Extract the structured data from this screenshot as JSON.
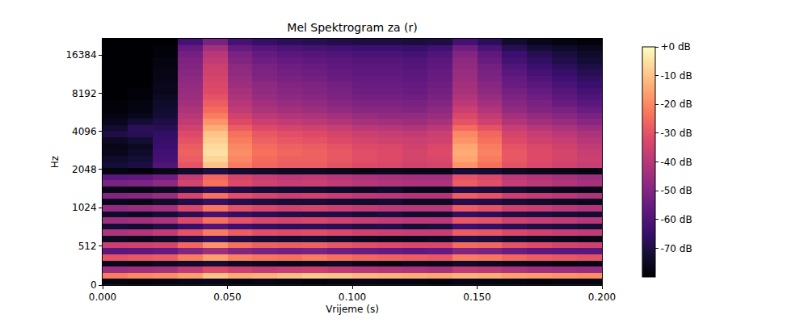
{
  "chart_data": {
    "type": "heatmap",
    "title": "Mel Spektrogram za (r)",
    "x_label": "Vrijeme (s)",
    "y_label": "Hz",
    "x": [
      0.005,
      0.015,
      0.025,
      0.035,
      0.045,
      0.055,
      0.065,
      0.075,
      0.085,
      0.095,
      0.105,
      0.115,
      0.125,
      0.135,
      0.145,
      0.155,
      0.165,
      0.175,
      0.185,
      0.195
    ],
    "y": [
      40,
      121,
      202,
      283,
      364,
      444,
      525,
      606,
      687,
      768,
      848,
      929,
      1014,
      1134,
      1268,
      1419,
      1587,
      1775,
      1985,
      2221,
      2483,
      2778,
      3107,
      3475,
      3887,
      4347,
      4863,
      5440,
      6084,
      6806,
      7612,
      8515,
      9525,
      10654,
      11917,
      13330,
      14911,
      16679,
      18656,
      20868
    ],
    "z": [
      [
        -78,
        -79,
        -78,
        -77,
        -76,
        -78,
        -77,
        -78,
        -79,
        -78,
        -77,
        -78,
        -78,
        -79,
        -77,
        -78,
        -78,
        -79,
        -78,
        -78
      ],
      [
        -22,
        -20,
        -19,
        -16,
        -10,
        -14,
        -13,
        -11,
        -9,
        -10,
        -12,
        -13,
        -14,
        -15,
        -13,
        -14,
        -16,
        -17,
        -18,
        -19
      ],
      [
        -45,
        -44,
        -43,
        -38,
        -32,
        -36,
        -38,
        -37,
        -36,
        -38,
        -40,
        -41,
        -42,
        -43,
        -38,
        -39,
        -42,
        -44,
        -45,
        -46
      ],
      [
        -76,
        -77,
        -75,
        -74,
        -72,
        -75,
        -76,
        -77,
        -76,
        -75,
        -77,
        -78,
        -76,
        -77,
        -74,
        -75,
        -76,
        -77,
        -78,
        -77
      ],
      [
        -30,
        -29,
        -28,
        -22,
        -16,
        -21,
        -23,
        -24,
        -22,
        -24,
        -26,
        -27,
        -28,
        -29,
        -22,
        -23,
        -26,
        -28,
        -29,
        -30
      ],
      [
        -58,
        -57,
        -56,
        -50,
        -45,
        -50,
        -52,
        -53,
        -52,
        -54,
        -55,
        -56,
        -57,
        -56,
        -50,
        -52,
        -55,
        -57,
        -58,
        -58
      ],
      [
        -36,
        -35,
        -34,
        -26,
        -18,
        -24,
        -27,
        -28,
        -27,
        -29,
        -31,
        -32,
        -33,
        -33,
        -25,
        -26,
        -30,
        -32,
        -34,
        -35
      ],
      [
        -75,
        -76,
        -74,
        -70,
        -66,
        -70,
        -72,
        -73,
        -72,
        -74,
        -75,
        -76,
        -76,
        -75,
        -70,
        -71,
        -74,
        -75,
        -76,
        -77
      ],
      [
        -42,
        -41,
        -38,
        -30,
        -22,
        -28,
        -31,
        -32,
        -31,
        -33,
        -35,
        -36,
        -37,
        -37,
        -28,
        -29,
        -33,
        -35,
        -37,
        -38
      ],
      [
        -72,
        -73,
        -70,
        -65,
        -60,
        -64,
        -66,
        -67,
        -67,
        -68,
        -70,
        -69,
        -72,
        -71,
        -64,
        -66,
        -68,
        -70,
        -71,
        -72
      ],
      [
        -45,
        -44,
        -42,
        -32,
        -24,
        -30,
        -33,
        -34,
        -33,
        -35,
        -37,
        -38,
        -39,
        -39,
        -29,
        -30,
        -35,
        -37,
        -38,
        -40
      ],
      [
        -74,
        -75,
        -72,
        -68,
        -62,
        -66,
        -68,
        -69,
        -70,
        -70,
        -72,
        -71,
        -73,
        -73,
        -66,
        -67,
        -70,
        -71,
        -72,
        -73
      ],
      [
        -47,
        -46,
        -44,
        -33,
        -23,
        -30,
        -33,
        -35,
        -34,
        -36,
        -38,
        -39,
        -40,
        -40,
        -28,
        -30,
        -35,
        -37,
        -39,
        -41
      ],
      [
        -76,
        -77,
        -74,
        -70,
        -66,
        -69,
        -71,
        -72,
        -72,
        -73,
        -74,
        -73,
        -75,
        -75,
        -69,
        -70,
        -72,
        -74,
        -75,
        -76
      ],
      [
        -50,
        -49,
        -46,
        -34,
        -24,
        -31,
        -34,
        -36,
        -35,
        -37,
        -39,
        -40,
        -41,
        -41,
        -28,
        -30,
        -36,
        -38,
        -40,
        -42
      ],
      [
        -77,
        -78,
        -75,
        -71,
        -67,
        -70,
        -72,
        -73,
        -73,
        -74,
        -75,
        -74,
        -76,
        -76,
        -70,
        -71,
        -73,
        -75,
        -76,
        -77
      ],
      [
        -52,
        -51,
        -48,
        -34,
        -24,
        -32,
        -35,
        -37,
        -36,
        -38,
        -40,
        -41,
        -42,
        -42,
        -28,
        -31,
        -37,
        -39,
        -41,
        -43
      ],
      [
        -58,
        -57,
        -54,
        -38,
        -26,
        -34,
        -37,
        -39,
        -38,
        -40,
        -42,
        -43,
        -44,
        -44,
        -30,
        -33,
        -39,
        -41,
        -43,
        -45
      ],
      [
        -78,
        -79,
        -77,
        -74,
        -70,
        -73,
        -74,
        -75,
        -75,
        -76,
        -77,
        -76,
        -77,
        -77,
        -72,
        -73,
        -75,
        -76,
        -77,
        -78
      ],
      [
        -72,
        -70,
        -60,
        -30,
        -10,
        -22,
        -26,
        -28,
        -28,
        -30,
        -32,
        -33,
        -35,
        -34,
        -18,
        -24,
        -30,
        -33,
        -35,
        -37
      ],
      [
        -74,
        -72,
        -62,
        -28,
        -7,
        -20,
        -25,
        -27,
        -27,
        -29,
        -31,
        -32,
        -34,
        -33,
        -15,
        -22,
        -29,
        -32,
        -34,
        -36
      ],
      [
        -76,
        -74,
        -63,
        -27,
        -5,
        -19,
        -24,
        -26,
        -27,
        -29,
        -31,
        -32,
        -34,
        -32,
        -14,
        -21,
        -29,
        -32,
        -34,
        -37
      ],
      [
        -77,
        -75,
        -64,
        -28,
        -6,
        -20,
        -25,
        -27,
        -28,
        -30,
        -32,
        -33,
        -35,
        -33,
        -15,
        -22,
        -30,
        -33,
        -35,
        -38
      ],
      [
        -75,
        -72,
        -65,
        -30,
        -8,
        -22,
        -27,
        -29,
        -30,
        -32,
        -34,
        -35,
        -36,
        -35,
        -18,
        -24,
        -32,
        -35,
        -37,
        -40
      ],
      [
        -70,
        -68,
        -66,
        -32,
        -10,
        -24,
        -29,
        -31,
        -32,
        -34,
        -36,
        -37,
        -38,
        -36,
        -20,
        -26,
        -34,
        -37,
        -39,
        -42
      ],
      [
        -73,
        -67,
        -68,
        -35,
        -14,
        -28,
        -32,
        -34,
        -35,
        -37,
        -39,
        -40,
        -41,
        -39,
        -25,
        -30,
        -37,
        -40,
        -42,
        -45
      ],
      [
        -76,
        -72,
        -70,
        -38,
        -18,
        -32,
        -36,
        -38,
        -39,
        -41,
        -43,
        -44,
        -45,
        -43,
        -30,
        -35,
        -41,
        -44,
        -46,
        -49
      ],
      [
        -78,
        -76,
        -72,
        -40,
        -22,
        -35,
        -39,
        -41,
        -42,
        -44,
        -46,
        -47,
        -47,
        -46,
        -33,
        -38,
        -44,
        -47,
        -49,
        -52
      ],
      [
        -79,
        -78,
        -73,
        -42,
        -25,
        -38,
        -42,
        -44,
        -45,
        -47,
        -49,
        -49,
        -50,
        -48,
        -36,
        -41,
        -47,
        -50,
        -52,
        -55
      ],
      [
        -79,
        -78,
        -74,
        -44,
        -28,
        -40,
        -44,
        -46,
        -47,
        -49,
        -51,
        -51,
        -52,
        -50,
        -39,
        -44,
        -49,
        -52,
        -55,
        -58
      ],
      [
        -80,
        -79,
        -75,
        -45,
        -30,
        -42,
        -46,
        -48,
        -49,
        -51,
        -53,
        -53,
        -54,
        -52,
        -41,
        -46,
        -51,
        -54,
        -57,
        -60
      ],
      [
        -80,
        -79,
        -76,
        -46,
        -32,
        -43,
        -47,
        -49,
        -50,
        -52,
        -54,
        -54,
        -55,
        -53,
        -43,
        -48,
        -53,
        -56,
        -59,
        -62
      ],
      [
        -80,
        -80,
        -76,
        -47,
        -33,
        -45,
        -48,
        -50,
        -51,
        -53,
        -55,
        -55,
        -56,
        -54,
        -44,
        -49,
        -55,
        -58,
        -61,
        -64
      ],
      [
        -80,
        -80,
        -77,
        -48,
        -34,
        -46,
        -50,
        -52,
        -53,
        -55,
        -56,
        -56,
        -57,
        -55,
        -45,
        -51,
        -56,
        -60,
        -63,
        -66
      ],
      [
        -80,
        -80,
        -77,
        -49,
        -35,
        -47,
        -51,
        -53,
        -54,
        -56,
        -57,
        -57,
        -58,
        -56,
        -46,
        -52,
        -58,
        -62,
        -65,
        -68
      ],
      [
        -80,
        -80,
        -78,
        -50,
        -36,
        -48,
        -52,
        -54,
        -55,
        -57,
        -58,
        -58,
        -59,
        -57,
        -47,
        -53,
        -60,
        -64,
        -67,
        -70
      ],
      [
        -80,
        -80,
        -78,
        -51,
        -38,
        -50,
        -54,
        -56,
        -57,
        -58,
        -59,
        -59,
        -60,
        -58,
        -48,
        -55,
        -62,
        -66,
        -69,
        -72
      ],
      [
        -80,
        -80,
        -79,
        -53,
        -40,
        -52,
        -56,
        -58,
        -59,
        -60,
        -61,
        -61,
        -62,
        -60,
        -50,
        -57,
        -64,
        -68,
        -71,
        -74
      ],
      [
        -80,
        -80,
        -79,
        -56,
        -44,
        -56,
        -59,
        -61,
        -62,
        -63,
        -64,
        -64,
        -65,
        -63,
        -54,
        -61,
        -68,
        -72,
        -74,
        -76
      ],
      [
        -80,
        -80,
        -80,
        -62,
        -52,
        -62,
        -65,
        -67,
        -68,
        -69,
        -70,
        -70,
        -71,
        -70,
        -62,
        -67,
        -73,
        -76,
        -78,
        -79
      ]
    ],
    "xlim": [
      0,
      0.2
    ],
    "xticks": [
      {
        "value": 0,
        "label": "0.000"
      },
      {
        "value": 0.05,
        "label": "0.050"
      },
      {
        "value": 0.1,
        "label": "0.100"
      },
      {
        "value": 0.15,
        "label": "0.150"
      },
      {
        "value": 0.2,
        "label": "0.200"
      }
    ],
    "ylim": [
      0,
      22050
    ],
    "yticks": [
      0,
      512,
      1024,
      2048,
      4096,
      8192,
      16384
    ],
    "colorbar_range": [
      -80,
      0
    ],
    "colorbar_ticks": [
      {
        "value": 0,
        "label": "+0 dB"
      },
      {
        "value": -10,
        "label": "-10 dB"
      },
      {
        "value": -20,
        "label": "-20 dB"
      },
      {
        "value": -30,
        "label": "-30 dB"
      },
      {
        "value": -40,
        "label": "-40 dB"
      },
      {
        "value": -50,
        "label": "-50 dB"
      },
      {
        "value": -60,
        "label": "-60 dB"
      },
      {
        "value": -70,
        "label": "-70 dB"
      }
    ],
    "grid": false
  }
}
